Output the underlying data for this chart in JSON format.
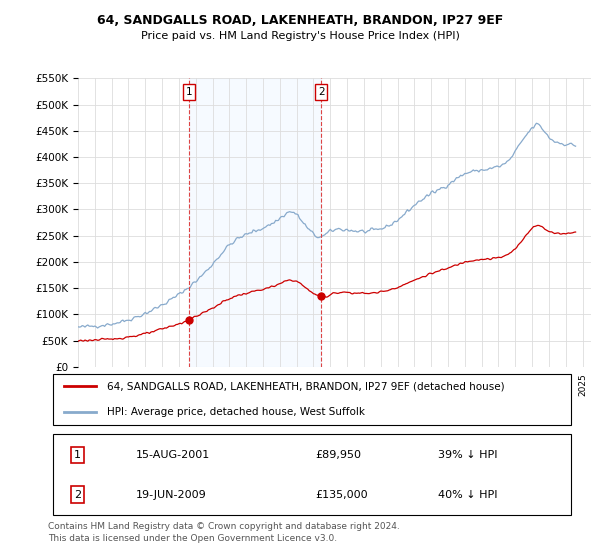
{
  "title": "64, SANDGALLS ROAD, LAKENHEATH, BRANDON, IP27 9EF",
  "subtitle": "Price paid vs. HM Land Registry's House Price Index (HPI)",
  "legend_property": "64, SANDGALLS ROAD, LAKENHEATH, BRANDON, IP27 9EF (detached house)",
  "legend_hpi": "HPI: Average price, detached house, West Suffolk",
  "footnote": "Contains HM Land Registry data © Crown copyright and database right 2024.\nThis data is licensed under the Open Government Licence v3.0.",
  "property_color": "#cc0000",
  "hpi_color": "#88aacc",
  "shade_color": "#ddeeff",
  "vline_color": "#dd4444",
  "point1_label": "1",
  "point1_date": "15-AUG-2001",
  "point1_price": "£89,950",
  "point1_hpi": "39% ↓ HPI",
  "point1_x": 2001.62,
  "point1_y": 89950,
  "point2_label": "2",
  "point2_date": "19-JUN-2009",
  "point2_price": "£135,000",
  "point2_hpi": "40% ↓ HPI",
  "point2_x": 2009.46,
  "point2_y": 135000,
  "ylim": [
    0,
    550000
  ],
  "yticks": [
    0,
    50000,
    100000,
    150000,
    200000,
    250000,
    300000,
    350000,
    400000,
    450000,
    500000,
    550000
  ],
  "xlim": [
    1995.0,
    2025.5
  ]
}
